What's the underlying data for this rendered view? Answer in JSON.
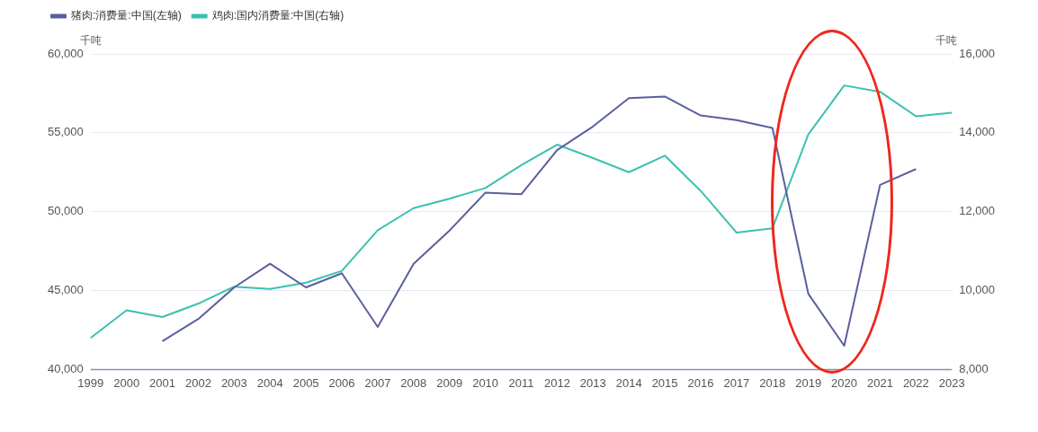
{
  "chart_data": {
    "type": "line",
    "categories": [
      "1999",
      "2000",
      "2001",
      "2002",
      "2003",
      "2004",
      "2005",
      "2006",
      "2007",
      "2008",
      "2009",
      "2010",
      "2011",
      "2012",
      "2013",
      "2014",
      "2015",
      "2016",
      "2017",
      "2018",
      "2019",
      "2020",
      "2021",
      "2022",
      "2023"
    ],
    "series": [
      {
        "name": "猪肉:消费量:中国(左轴)",
        "color": "#5a5fa0",
        "values": [
          null,
          null,
          41800,
          43200,
          45200,
          46700,
          45200,
          46100,
          42700,
          46700,
          48800,
          51200,
          51100,
          53900,
          55400,
          57200,
          57300,
          56100,
          55800,
          55300,
          44800,
          41500,
          51700,
          52700,
          null
        ]
      },
      {
        "name": "鸡肉:国内消费量:中国(右轴)",
        "color": "#3cc0b0",
        "axis": "y2",
        "values": [
          8800,
          9500,
          9330,
          9670,
          10100,
          10040,
          10200,
          10500,
          11530,
          12090,
          12330,
          12600,
          13180,
          13700,
          13360,
          13000,
          13420,
          12530,
          11470,
          11580,
          13960,
          15200,
          15040,
          14420,
          14510
        ]
      }
    ],
    "ylabel": "千吨",
    "y2label": "千吨",
    "ylim": [
      40000,
      60000
    ],
    "yticks": [
      {
        "value": 40000,
        "label": "40,000"
      },
      {
        "value": 45000,
        "label": "45,000"
      },
      {
        "value": 50000,
        "label": "50,000"
      },
      {
        "value": 55000,
        "label": "55,000"
      },
      {
        "value": 60000,
        "label": "60,000"
      }
    ],
    "y2lim": [
      8000,
      16000
    ],
    "y2ticks": [
      {
        "value": 8000,
        "label": "8,000"
      },
      {
        "value": 10000,
        "label": "10,000"
      },
      {
        "value": 12000,
        "label": "12,000"
      },
      {
        "value": 14000,
        "label": "14,000"
      },
      {
        "value": 16000,
        "label": "16,000"
      }
    ],
    "grid": "y",
    "legend": "top left",
    "marker": "none",
    "line_style": "solid"
  }
}
